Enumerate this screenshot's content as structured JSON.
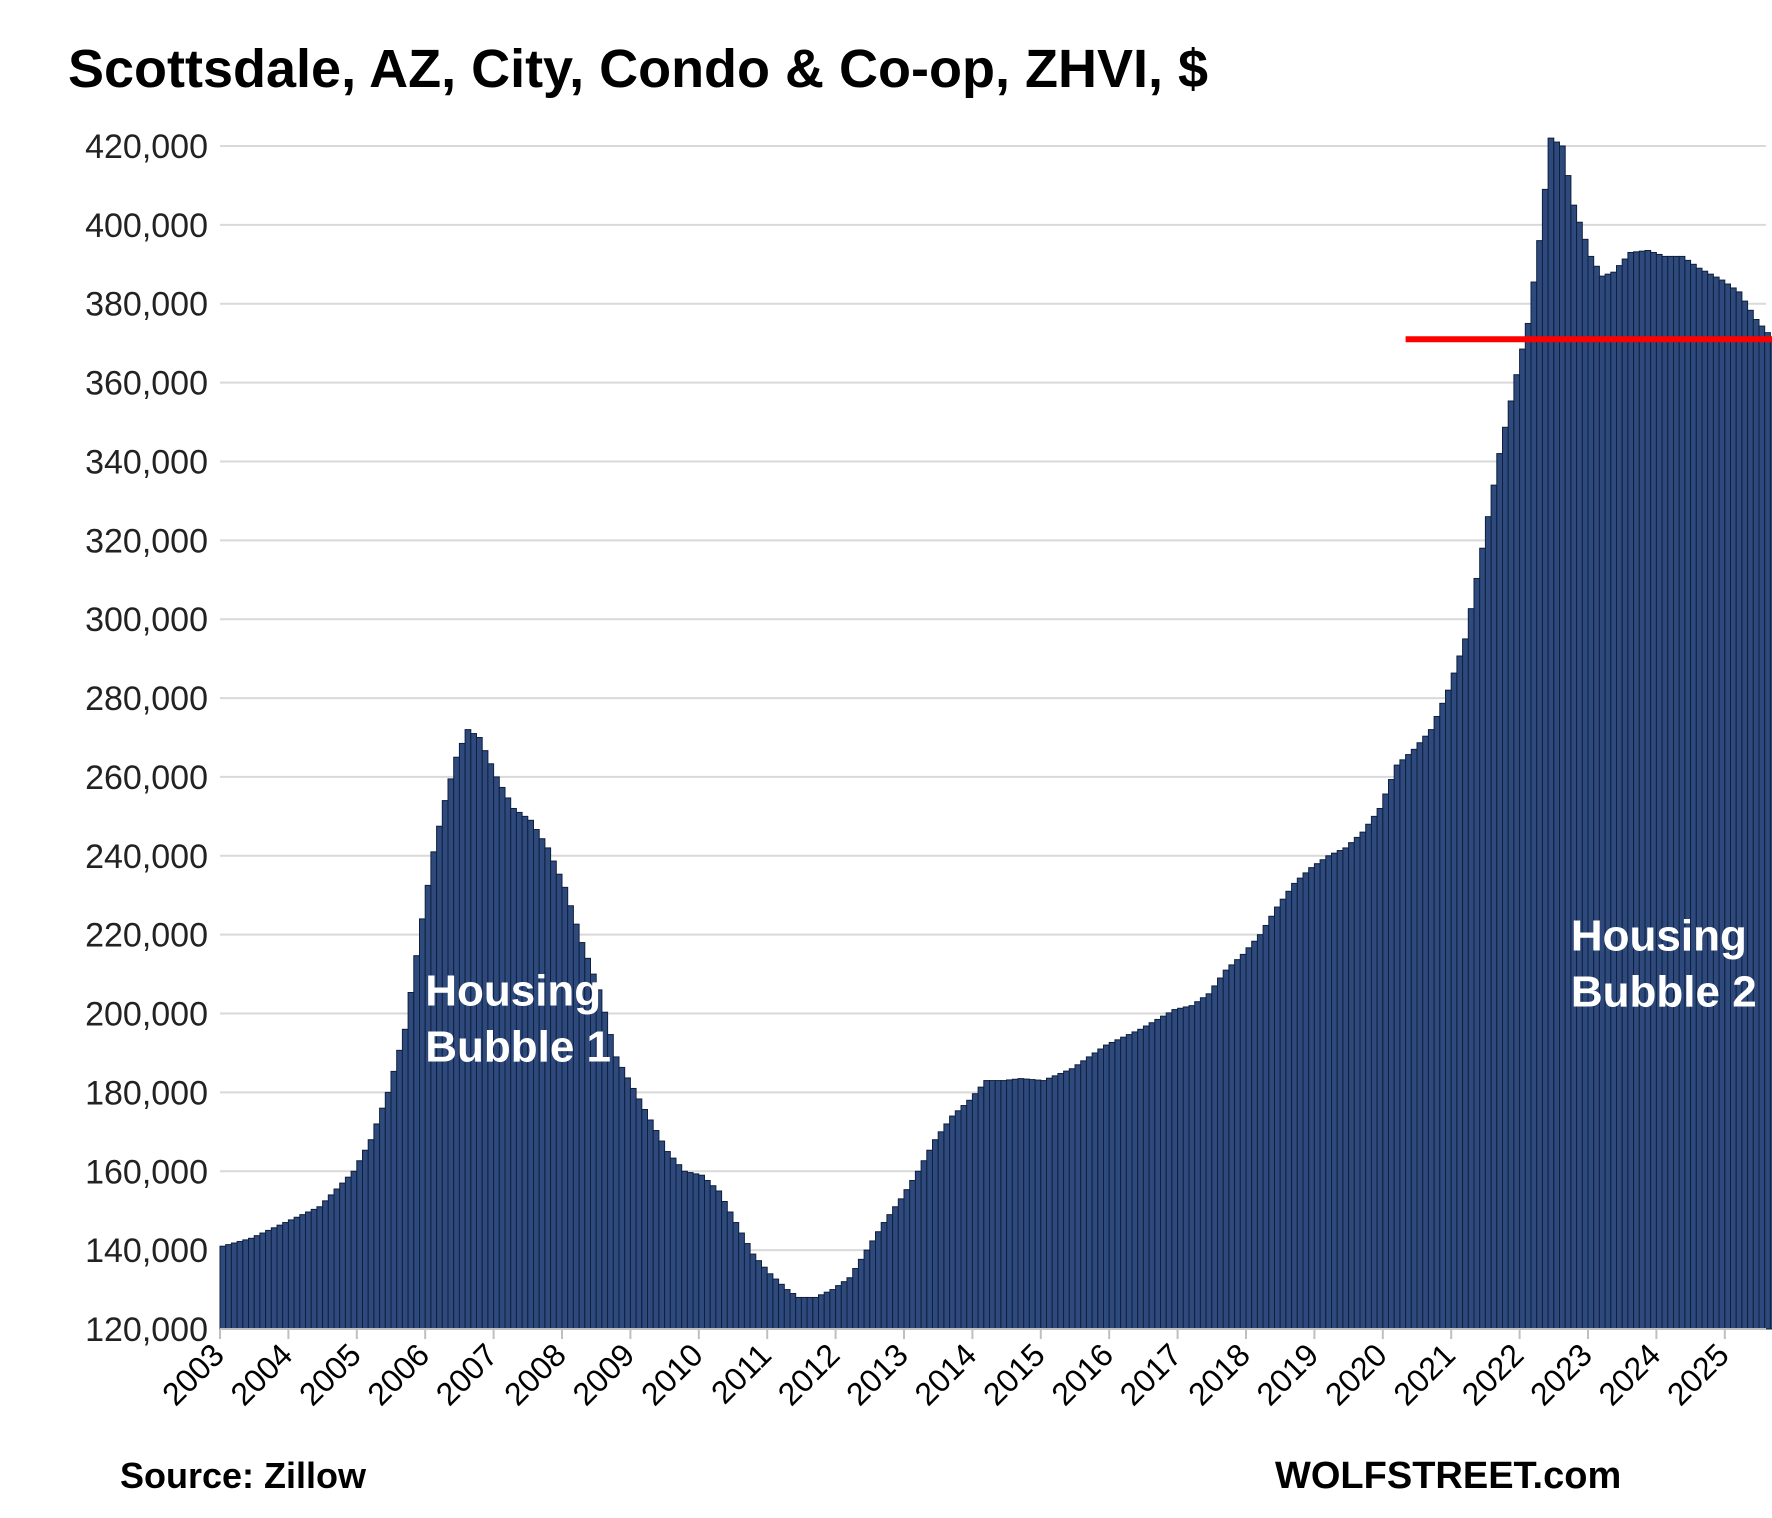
{
  "chart_data": {
    "type": "bar",
    "title": "Scottsdale, AZ, City, Condo & Co-op, ZHVI, $",
    "xlabel": "",
    "ylabel": "",
    "ylim": [
      120000,
      420000
    ],
    "y_ticks": [
      "120,000",
      "140,000",
      "160,000",
      "180,000",
      "200,000",
      "220,000",
      "240,000",
      "260,000",
      "280,000",
      "300,000",
      "320,000",
      "340,000",
      "360,000",
      "380,000",
      "400,000",
      "420,000"
    ],
    "x_ticks": [
      "2003",
      "2004",
      "2005",
      "2006",
      "2007",
      "2008",
      "2009",
      "2010",
      "2011",
      "2012",
      "2013",
      "2014",
      "2015",
      "2016",
      "2017",
      "2018",
      "2019",
      "2020",
      "2021",
      "2022",
      "2023",
      "2024",
      "2025"
    ],
    "grid": true,
    "legend": "none",
    "bar_color": "#2e4a7d",
    "bar_edge_color": "#0f1f3d",
    "frequency": "monthly",
    "start": "2003-01",
    "end": "2025-09",
    "anchors": [
      [
        "2003-01",
        141000
      ],
      [
        "2003-06",
        143000
      ],
      [
        "2003-12",
        147000
      ],
      [
        "2004-06",
        151000
      ],
      [
        "2004-12",
        160000
      ],
      [
        "2005-03",
        168000
      ],
      [
        "2005-06",
        180000
      ],
      [
        "2005-09",
        196000
      ],
      [
        "2005-12",
        224000
      ],
      [
        "2006-02",
        241000
      ],
      [
        "2006-04",
        254000
      ],
      [
        "2006-06",
        265000
      ],
      [
        "2006-08",
        272000
      ],
      [
        "2006-10",
        270000
      ],
      [
        "2007-01",
        260000
      ],
      [
        "2007-04",
        252000
      ],
      [
        "2007-07",
        249000
      ],
      [
        "2007-10",
        242000
      ],
      [
        "2008-01",
        232000
      ],
      [
        "2008-04",
        218000
      ],
      [
        "2008-07",
        206000
      ],
      [
        "2008-10",
        189000
      ],
      [
        "2009-01",
        181000
      ],
      [
        "2009-04",
        173000
      ],
      [
        "2009-07",
        165000
      ],
      [
        "2009-10",
        160000
      ],
      [
        "2010-01",
        159000
      ],
      [
        "2010-04",
        155000
      ],
      [
        "2010-07",
        147000
      ],
      [
        "2010-10",
        139000
      ],
      [
        "2011-01",
        134000
      ],
      [
        "2011-04",
        130000
      ],
      [
        "2011-06",
        128000
      ],
      [
        "2011-09",
        128000
      ],
      [
        "2011-12",
        130000
      ],
      [
        "2012-03",
        133000
      ],
      [
        "2012-06",
        140000
      ],
      [
        "2012-09",
        147000
      ],
      [
        "2012-12",
        153000
      ],
      [
        "2013-03",
        160000
      ],
      [
        "2013-06",
        168000
      ],
      [
        "2013-09",
        174000
      ],
      [
        "2013-12",
        178000
      ],
      [
        "2014-03",
        183000
      ],
      [
        "2014-06",
        183000
      ],
      [
        "2014-09",
        183500
      ],
      [
        "2015-01",
        183000
      ],
      [
        "2015-06",
        186000
      ],
      [
        "2015-09",
        189000
      ],
      [
        "2015-12",
        192000
      ],
      [
        "2016-06",
        196000
      ],
      [
        "2016-12",
        201000
      ],
      [
        "2017-03",
        202000
      ],
      [
        "2017-06",
        205000
      ],
      [
        "2017-09",
        211000
      ],
      [
        "2017-12",
        215000
      ],
      [
        "2018-03",
        220000
      ],
      [
        "2018-06",
        227000
      ],
      [
        "2018-09",
        233000
      ],
      [
        "2018-12",
        237000
      ],
      [
        "2019-03",
        240000
      ],
      [
        "2019-06",
        242000
      ],
      [
        "2019-09",
        246000
      ],
      [
        "2019-12",
        252000
      ],
      [
        "2020-03",
        263000
      ],
      [
        "2020-06",
        267000
      ],
      [
        "2020-09",
        272000
      ],
      [
        "2020-12",
        282000
      ],
      [
        "2021-03",
        295000
      ],
      [
        "2021-06",
        318000
      ],
      [
        "2021-09",
        342000
      ],
      [
        "2021-12",
        362000
      ],
      [
        "2022-02",
        375000
      ],
      [
        "2022-04",
        396000
      ],
      [
        "2022-06",
        422000
      ],
      [
        "2022-08",
        420000
      ],
      [
        "2022-10",
        405000
      ],
      [
        "2023-01",
        392000
      ],
      [
        "2023-03",
        387000
      ],
      [
        "2023-05",
        388000
      ],
      [
        "2023-08",
        393000
      ],
      [
        "2023-11",
        393500
      ],
      [
        "2024-02",
        392000
      ],
      [
        "2024-05",
        392000
      ],
      [
        "2024-08",
        389000
      ],
      [
        "2024-12",
        386000
      ],
      [
        "2025-03",
        383000
      ],
      [
        "2025-06",
        376000
      ],
      [
        "2025-09",
        371000
      ]
    ],
    "reference_line": {
      "y": 371000,
      "from": "2020-05",
      "color": "#ff0000"
    },
    "annotations": [
      {
        "lines": [
          "Housing",
          "Bubble 1"
        ],
        "at_x": "2006-01",
        "at_y": 202000
      },
      {
        "lines": [
          "Housing",
          "Bubble 2"
        ],
        "at_x": "2022-10",
        "at_y": 216000
      }
    ]
  },
  "footer": {
    "source": "Source: Zillow",
    "credit": "WOLFSTREET.com"
  }
}
